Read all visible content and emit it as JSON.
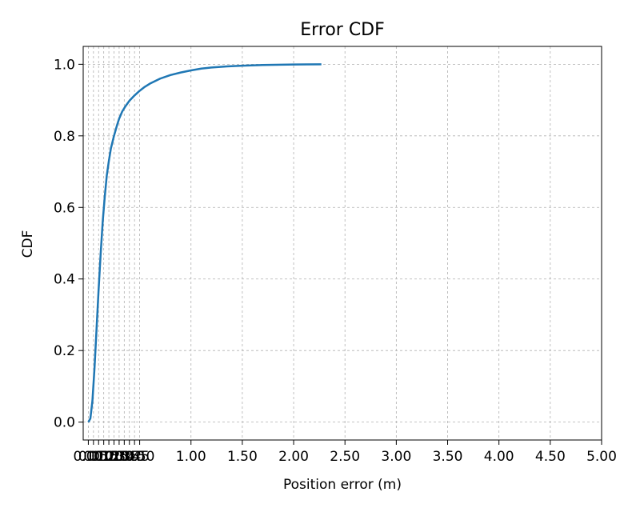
{
  "chart_data": {
    "type": "line",
    "title": "Error CDF",
    "xlabel": "Position error (m)",
    "ylabel": "CDF",
    "xlim": [
      -0.05,
      5.0
    ],
    "ylim": [
      -0.05,
      1.05
    ],
    "grid": true,
    "x_ticks": [
      0.0,
      0.05,
      0.1,
      0.15,
      0.2,
      0.25,
      0.3,
      0.35,
      0.4,
      0.45,
      0.5,
      1.0,
      1.5,
      2.0,
      2.5,
      3.0,
      3.5,
      4.0,
      4.5,
      5.0
    ],
    "x_tick_labels": [
      "0.00",
      "0.05",
      "0.10",
      "0.15",
      "0.20",
      "0.25",
      "0.30",
      "0.35",
      "0.40",
      "0.45",
      "0.50",
      "1.00",
      "1.50",
      "2.00",
      "2.50",
      "3.00",
      "3.50",
      "4.00",
      "4.50",
      "5.00"
    ],
    "y_ticks": [
      0.0,
      0.2,
      0.4,
      0.6,
      0.8,
      1.0
    ],
    "y_tick_labels": [
      "0.0",
      "0.2",
      "0.4",
      "0.6",
      "0.8",
      "1.0"
    ],
    "series": [
      {
        "color": "#1f77b4",
        "x": [
          0.0,
          0.02,
          0.04,
          0.06,
          0.08,
          0.1,
          0.12,
          0.14,
          0.16,
          0.18,
          0.2,
          0.22,
          0.25,
          0.28,
          0.3,
          0.33,
          0.36,
          0.4,
          0.45,
          0.5,
          0.55,
          0.6,
          0.65,
          0.7,
          0.8,
          0.9,
          1.0,
          1.1,
          1.2,
          1.35,
          1.5,
          1.7,
          2.0,
          2.27
        ],
        "y": [
          0.0,
          0.01,
          0.06,
          0.15,
          0.26,
          0.37,
          0.47,
          0.56,
          0.63,
          0.69,
          0.73,
          0.765,
          0.8,
          0.83,
          0.848,
          0.868,
          0.882,
          0.898,
          0.913,
          0.926,
          0.937,
          0.946,
          0.953,
          0.96,
          0.97,
          0.977,
          0.983,
          0.988,
          0.991,
          0.994,
          0.996,
          0.998,
          0.9995,
          1.0
        ]
      }
    ]
  }
}
